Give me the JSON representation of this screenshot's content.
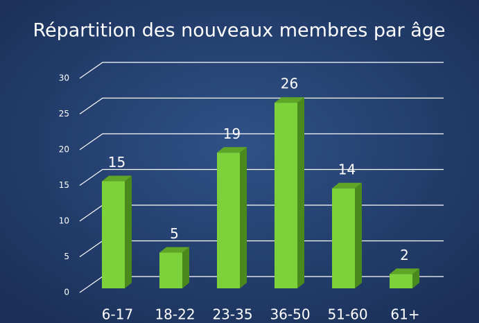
{
  "chart_data": {
    "type": "bar",
    "title": "Répartition des nouveaux membres par âge",
    "categories": [
      "6-17",
      "18-22",
      "23-35",
      "36-50",
      "51-60",
      "61+"
    ],
    "values": [
      15,
      5,
      19,
      26,
      14,
      2
    ],
    "color": "#7dd13a",
    "ylim": [
      0,
      30
    ],
    "yticks": [
      0,
      5,
      10,
      15,
      20,
      25,
      30
    ],
    "grid": true
  }
}
